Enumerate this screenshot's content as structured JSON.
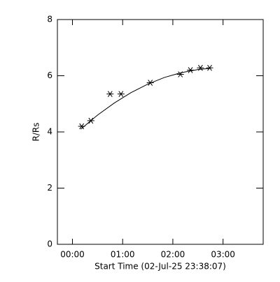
{
  "chart_data": {
    "type": "scatter",
    "xlabel": "Start Time (02-Jul-25 23:38:07)",
    "ylabel": "R/Rs",
    "xlim": [
      -18,
      228
    ],
    "xticks": [
      {
        "value": 0,
        "label": "00:00"
      },
      {
        "value": 60,
        "label": "01:00"
      },
      {
        "value": 120,
        "label": "02:00"
      },
      {
        "value": 180,
        "label": "03:00"
      }
    ],
    "ylim": [
      0,
      8
    ],
    "yticks": [
      0,
      2,
      4,
      6,
      8
    ],
    "series": [
      {
        "type": "scatter",
        "color": "#000000",
        "x": [
          11,
          22,
          45,
          58,
          93,
          129,
          141,
          153,
          164
        ],
        "values": [
          4.2,
          4.4,
          5.35,
          5.35,
          5.75,
          6.05,
          6.2,
          6.28,
          6.28
        ]
      },
      {
        "type": "line",
        "color": "#000000",
        "x": [
          10,
          30,
          50,
          70,
          90,
          110,
          130,
          150,
          164
        ],
        "values": [
          4.1,
          4.6,
          5.03,
          5.4,
          5.7,
          5.94,
          6.11,
          6.22,
          6.26
        ]
      }
    ]
  }
}
